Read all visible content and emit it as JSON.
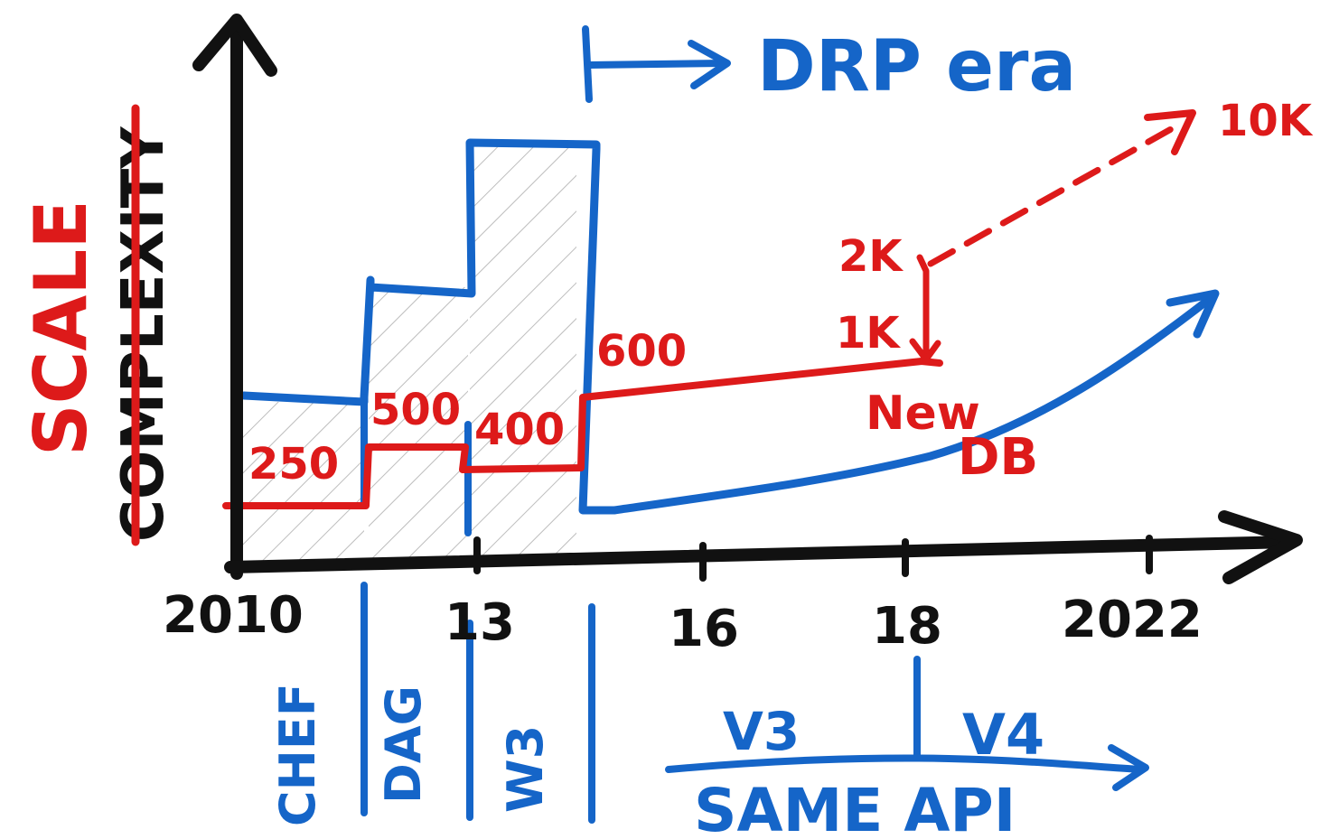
{
  "y_axis": {
    "title": "SCALE",
    "crossed_out_title": "COMPLEXITY"
  },
  "x_axis": {
    "ticks": [
      "2010",
      "13",
      "16",
      "18",
      "2022"
    ]
  },
  "header": {
    "label": "DRP era"
  },
  "scale_labels": {
    "l250": "250",
    "l500": "500",
    "l400": "400",
    "l600": "600",
    "l1k": "1K",
    "l2k": "2K",
    "l10k": "10K",
    "new": "New",
    "db": "DB"
  },
  "eras": {
    "chef": "CHEF",
    "dag": "DAG",
    "w3": "W3"
  },
  "api": {
    "v3": "V3",
    "v4": "V4",
    "same_api": "SAME API"
  },
  "colors": {
    "ink": "#111111",
    "blue": "#1565c8",
    "red": "#dd1a1a",
    "hatch": "#bdbdbd"
  }
}
